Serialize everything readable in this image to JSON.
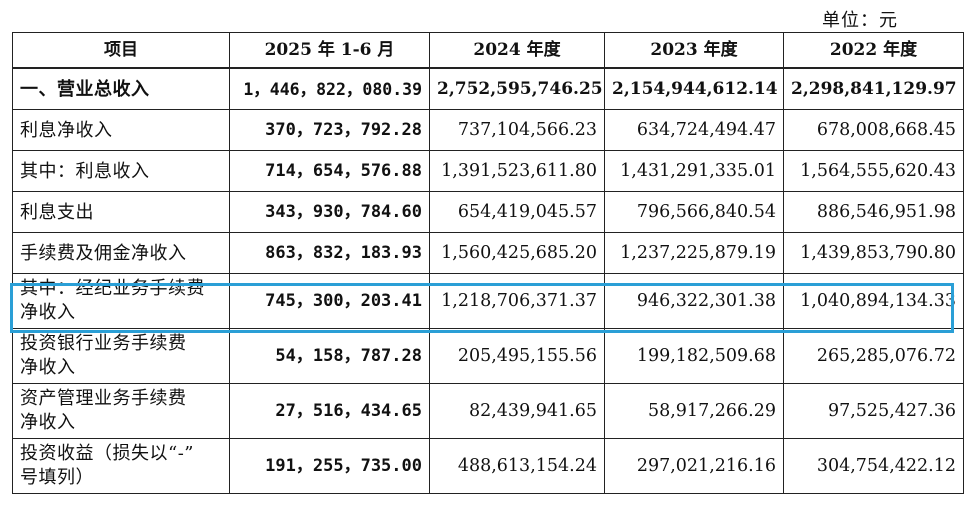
{
  "unit_label": "单位：元",
  "header": {
    "col0": "项目",
    "col1": "2025 年 1-6 月",
    "col2": "2024 年度",
    "col3": "2023 年度",
    "col4": "2022 年度"
  },
  "rows": [
    {
      "label_line1": "一、营业总收入",
      "label_line2": "",
      "v2025h1": "1，446，822，080.39",
      "v2024": "2,752,595,746.25",
      "v2023": "2,154,944,612.14",
      "v2022": "2,298,841,129.97"
    },
    {
      "label_line1": "利息净收入",
      "label_line2": "",
      "v2025h1": "370，723，792.28",
      "v2024": "737,104,566.23",
      "v2023": "634,724,494.47",
      "v2022": "678,008,668.45"
    },
    {
      "label_line1": "其中：利息收入",
      "label_line2": "",
      "v2025h1": "714，654，576.88",
      "v2024": "1,391,523,611.80",
      "v2023": "1,431,291,335.01",
      "v2022": "1,564,555,620.43"
    },
    {
      "label_line1": "利息支出",
      "label_line2": "",
      "v2025h1": "343，930，784.60",
      "v2024": "654,419,045.57",
      "v2023": "796,566,840.54",
      "v2022": "886,546,951.98"
    },
    {
      "label_line1": "手续费及佣金净收入",
      "label_line2": "",
      "v2025h1": "863，832，183.93",
      "v2024": "1,560,425,685.20",
      "v2023": "1,237,225,879.19",
      "v2022": "1,439,853,790.80"
    },
    {
      "label_line1": "其中：经纪业务手续费",
      "label_line2": "净收入",
      "v2025h1": "745，300，203.41",
      "v2024": "1,218,706,371.37",
      "v2023": "946,322,301.38",
      "v2022": "1,040,894,134.33"
    },
    {
      "label_line1": "投资银行业务手续费",
      "label_line2": "净收入",
      "v2025h1": "54，158，787.28",
      "v2024": "205,495,155.56",
      "v2023": "199,182,509.68",
      "v2022": "265,285,076.72"
    },
    {
      "label_line1": "资产管理业务手续费",
      "label_line2": "净收入",
      "v2025h1": "27，516，434.65",
      "v2024": "82,439,941.65",
      "v2023": "58,917,266.29",
      "v2022": "97,525,427.36"
    },
    {
      "label_line1": "投资收益（损失以“-”",
      "label_line2": "号填列）",
      "v2025h1": "191，255，735.00",
      "v2024": "488,613,154.24",
      "v2023": "297,021,216.16",
      "v2022": "304,754,422.12"
    }
  ],
  "highlight_color": "#2a9fd6"
}
